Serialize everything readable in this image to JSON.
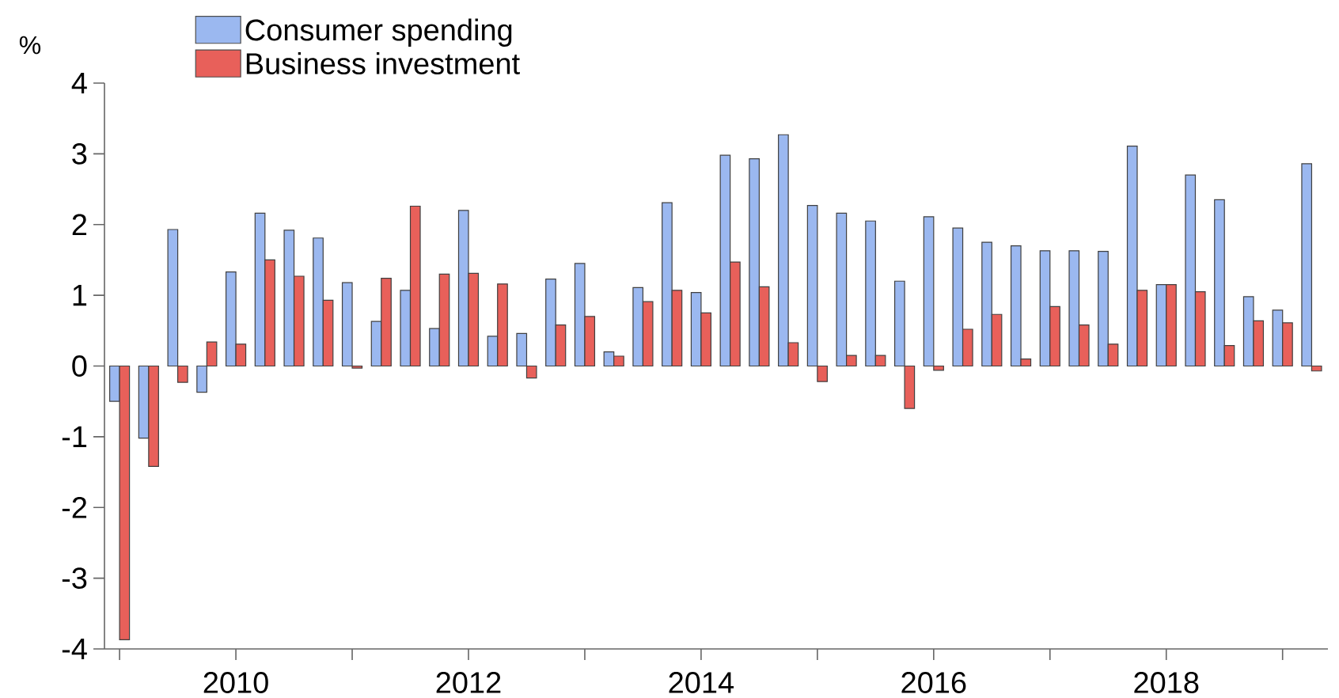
{
  "chart_data": {
    "type": "bar",
    "ylabel": "%",
    "x": [
      2009,
      2009.25,
      2009.5,
      2009.75,
      2010,
      2010.25,
      2010.5,
      2010.75,
      2011,
      2011.25,
      2011.5,
      2011.75,
      2012,
      2012.25,
      2012.5,
      2012.75,
      2013,
      2013.25,
      2013.5,
      2013.75,
      2014,
      2014.25,
      2014.5,
      2014.75,
      2015,
      2015.25,
      2015.5,
      2015.75,
      2016,
      2016.25,
      2016.5,
      2016.75,
      2017,
      2017.25,
      2017.5,
      2017.75,
      2018,
      2018.25,
      2018.5,
      2018.75,
      2019,
      2019.25
    ],
    "series": [
      {
        "name": "Consumer spending",
        "color": "#9bb8f0",
        "values": [
          -0.5,
          -1.02,
          1.93,
          -0.37,
          1.33,
          2.16,
          1.92,
          1.81,
          1.18,
          0.63,
          1.07,
          0.53,
          2.2,
          0.42,
          0.46,
          1.23,
          1.45,
          0.2,
          1.11,
          2.31,
          1.04,
          2.98,
          2.93,
          3.27,
          2.27,
          2.16,
          2.05,
          1.2,
          2.11,
          1.95,
          1.75,
          1.7,
          1.63,
          1.63,
          1.62,
          3.11,
          1.15,
          2.7,
          2.35,
          0.98,
          0.79,
          2.86
        ]
      },
      {
        "name": "Business investment",
        "color": "#e8605a",
        "values": [
          -3.87,
          -1.42,
          -0.23,
          0.34,
          0.31,
          1.5,
          1.27,
          0.93,
          -0.03,
          1.24,
          2.26,
          1.3,
          1.31,
          1.16,
          -0.17,
          0.58,
          0.7,
          0.14,
          0.91,
          1.07,
          0.75,
          1.47,
          1.12,
          0.33,
          -0.22,
          0.15,
          0.15,
          -0.6,
          -0.06,
          0.52,
          0.73,
          0.1,
          0.84,
          0.58,
          0.31,
          1.07,
          1.15,
          1.05,
          0.29,
          0.64,
          0.61,
          -0.07
        ]
      }
    ],
    "xlim": [
      2008.87,
      2019.39
    ],
    "xticks": [
      {
        "value": 2009,
        "label": null
      },
      2010,
      {
        "value": 2011,
        "label": null
      },
      2012,
      {
        "value": 2013,
        "label": null
      },
      2014,
      {
        "value": 2015,
        "label": null
      },
      2016,
      {
        "value": 2017,
        "label": null
      },
      2018,
      {
        "value": 2019,
        "label": null
      }
    ],
    "ylim": [
      -4,
      4
    ],
    "yticks": [
      -4,
      -3,
      -2,
      -1,
      0,
      1,
      2,
      3,
      4
    ],
    "legend": "top left"
  }
}
